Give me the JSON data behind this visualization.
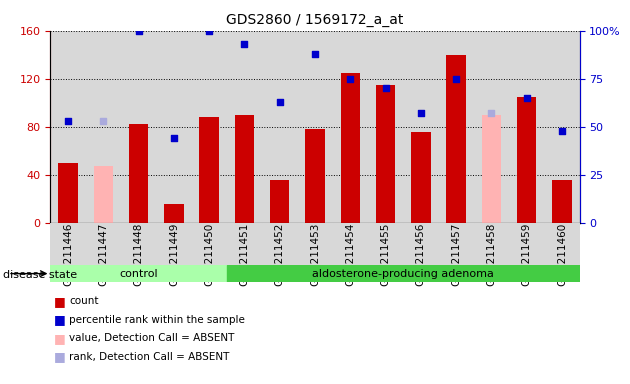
{
  "title": "GDS2860 / 1569172_a_at",
  "samples": [
    "GSM211446",
    "GSM211447",
    "GSM211448",
    "GSM211449",
    "GSM211450",
    "GSM211451",
    "GSM211452",
    "GSM211453",
    "GSM211454",
    "GSM211455",
    "GSM211456",
    "GSM211457",
    "GSM211458",
    "GSM211459",
    "GSM211460"
  ],
  "counts": [
    50,
    0,
    82,
    16,
    88,
    90,
    36,
    78,
    125,
    115,
    76,
    140,
    0,
    105,
    36
  ],
  "absent_counts": [
    0,
    47,
    0,
    0,
    0,
    0,
    0,
    0,
    0,
    0,
    0,
    0,
    90,
    0,
    0
  ],
  "blue_squares": [
    53,
    0,
    100,
    44,
    100,
    93,
    63,
    88,
    75,
    70,
    57,
    75,
    0,
    65,
    48
  ],
  "absent_blue_squares": [
    0,
    53,
    0,
    0,
    0,
    0,
    0,
    0,
    0,
    0,
    0,
    0,
    57,
    0,
    0
  ],
  "group_labels": [
    "control",
    "aldosterone-producing adenoma"
  ],
  "bar_color": "#cc0000",
  "absent_bar_color": "#ffb3b3",
  "blue_color": "#0000cc",
  "absent_blue_color": "#aaaadd",
  "ylim_left": [
    0,
    160
  ],
  "ylim_right": [
    0,
    100
  ],
  "yticks_left": [
    0,
    40,
    80,
    120,
    160
  ],
  "yticks_right": [
    0,
    25,
    50,
    75,
    100
  ],
  "yticklabels_right": [
    "0",
    "25",
    "50",
    "75",
    "100%"
  ],
  "tick_color_left": "#cc0000",
  "tick_color_right": "#0000cc",
  "legend_items": [
    {
      "label": "count",
      "color": "#cc0000"
    },
    {
      "label": "percentile rank within the sample",
      "color": "#0000cc"
    },
    {
      "label": "value, Detection Call = ABSENT",
      "color": "#ffb3b3"
    },
    {
      "label": "rank, Detection Call = ABSENT",
      "color": "#aaaadd"
    }
  ],
  "disease_state_label": "disease state",
  "control_indices": [
    0,
    1,
    2,
    3,
    4
  ],
  "adenoma_indices": [
    5,
    6,
    7,
    8,
    9,
    10,
    11,
    12,
    13,
    14
  ],
  "control_color": "#aaffaa",
  "adenoma_color": "#44cc44"
}
